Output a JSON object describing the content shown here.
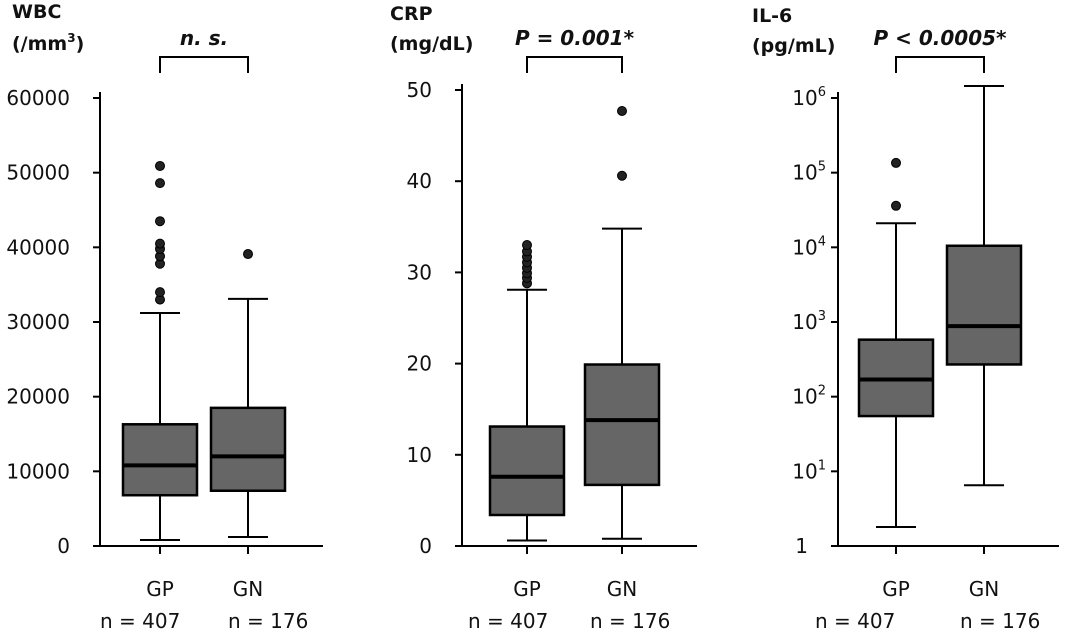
{
  "chart_data": [
    {
      "type": "box",
      "ylabel_line1": "WBC",
      "ylabel_line2": "(/mm",
      "ylabel_sup": "3",
      "ylabel_close": ")",
      "scale": "linear",
      "ylim": [
        0,
        65000
      ],
      "yticks": [
        {
          "v": 0,
          "label": "0"
        },
        {
          "v": 10000,
          "label": "10000"
        },
        {
          "v": 20000,
          "label": "20000"
        },
        {
          "v": 30000,
          "label": "30000"
        },
        {
          "v": 40000,
          "label": "40000"
        },
        {
          "v": 50000,
          "label": "50000"
        },
        {
          "v": 60000,
          "label": "60000"
        }
      ],
      "significance": "n. s.",
      "boxes": [
        {
          "name": "GP",
          "n_label": "n = 407",
          "whisker_low": 800,
          "q1": 6800,
          "median": 10800,
          "q3": 16300,
          "whisker_high": 31200,
          "outliers": [
            33000,
            34000,
            37800,
            38800,
            39800,
            40500,
            43500,
            48600,
            50900
          ]
        },
        {
          "name": "GN",
          "n_label": "n = 176",
          "whisker_low": 1200,
          "q1": 7400,
          "median": 12000,
          "q3": 18500,
          "whisker_high": 33100,
          "outliers": [
            39100
          ]
        }
      ]
    },
    {
      "type": "box",
      "ylabel_line1": "CRP",
      "ylabel_line2": "(mg/dL)",
      "ylabel_sup": "",
      "ylabel_close": "",
      "scale": "linear",
      "ylim": [
        0,
        52
      ],
      "yticks": [
        {
          "v": 0,
          "label": "0"
        },
        {
          "v": 10,
          "label": "10"
        },
        {
          "v": 20,
          "label": "20"
        },
        {
          "v": 30,
          "label": "30"
        },
        {
          "v": 40,
          "label": "40"
        },
        {
          "v": 50,
          "label": "50"
        }
      ],
      "significance": "P = 0.001*",
      "boxes": [
        {
          "name": "GP",
          "n_label": "n = 407",
          "whisker_low": 0.6,
          "q1": 3.4,
          "median": 7.6,
          "q3": 13.1,
          "whisker_high": 28.1,
          "outliers": [
            28.8,
            29.4,
            29.9,
            30.5,
            31.1,
            31.7,
            32.3,
            33.0
          ]
        },
        {
          "name": "GN",
          "n_label": "n = 176",
          "whisker_low": 0.8,
          "q1": 6.7,
          "median": 13.8,
          "q3": 19.9,
          "whisker_high": 34.8,
          "outliers": [
            40.6,
            47.7
          ]
        }
      ]
    },
    {
      "type": "box",
      "ylabel_line1": "IL-6",
      "ylabel_line2": "(pg/mL)",
      "ylabel_sup": "",
      "ylabel_close": "",
      "scale": "log",
      "ylim": [
        1,
        2000000
      ],
      "yticks": [
        {
          "v": 1,
          "label": "1",
          "exp": ""
        },
        {
          "v": 10,
          "label": "10",
          "exp": "1"
        },
        {
          "v": 100,
          "label": "10",
          "exp": "2"
        },
        {
          "v": 1000,
          "label": "10",
          "exp": "3"
        },
        {
          "v": 10000,
          "label": "10",
          "exp": "4"
        },
        {
          "v": 100000,
          "label": "10",
          "exp": "5"
        },
        {
          "v": 1000000,
          "label": "10",
          "exp": "6"
        }
      ],
      "significance": "P < 0.0005*",
      "boxes": [
        {
          "name": "GP",
          "n_label": "n = 407",
          "whisker_low": 1.8,
          "q1": 55,
          "median": 170,
          "q3": 580,
          "whisker_high": 21000,
          "outliers": [
            36000,
            135000
          ]
        },
        {
          "name": "GN",
          "n_label": "n = 176",
          "whisker_low": 6.5,
          "q1": 270,
          "median": 880,
          "q3": 10500,
          "whisker_high": 1450000,
          "outliers": []
        }
      ]
    }
  ]
}
